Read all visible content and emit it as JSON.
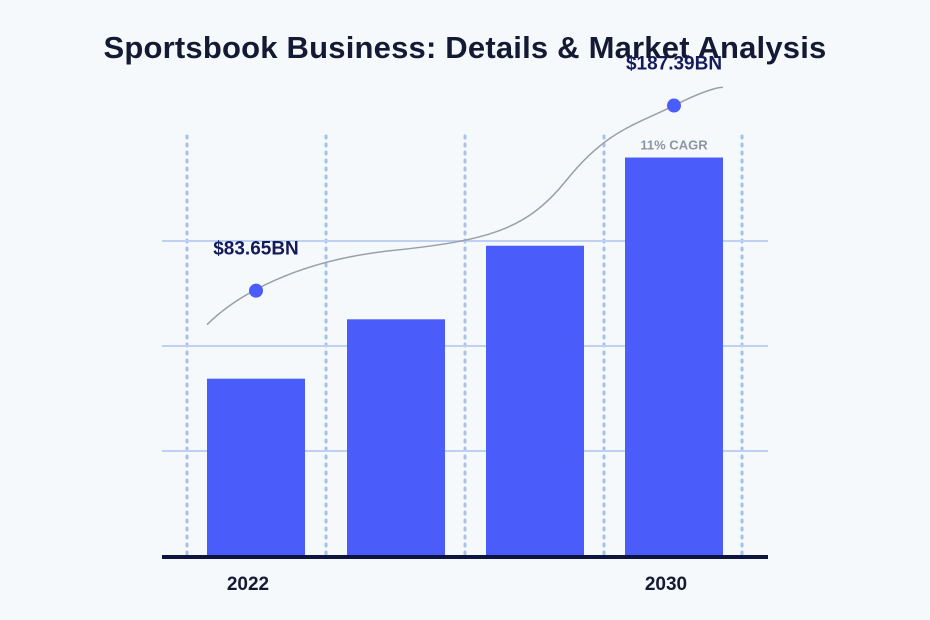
{
  "chart_data": {
    "type": "bar",
    "title": "Sportsbook Business: Details & Market Analysis",
    "categories": [
      "2022",
      "",
      "",
      "2030"
    ],
    "values": [
      83.65,
      111.5,
      146.0,
      187.39
    ],
    "ylim": [
      0,
      220
    ],
    "trend_points": [
      {
        "category_index": 0,
        "label": "$83.65BN",
        "value": 83.65
      },
      {
        "category_index": 3,
        "label": "$187.39BN",
        "value": 187.39
      }
    ],
    "annotation": "11% CAGR",
    "grid": true,
    "colors": {
      "bar": "#4a5cfa",
      "marker": "#4a5cfa",
      "trend_line": "#9aa0a8",
      "grid_horizontal": "#bfd0f2",
      "grid_vertical": "#a9c0ee",
      "baseline": "#0d1440",
      "background": "#f5f9fc"
    }
  }
}
